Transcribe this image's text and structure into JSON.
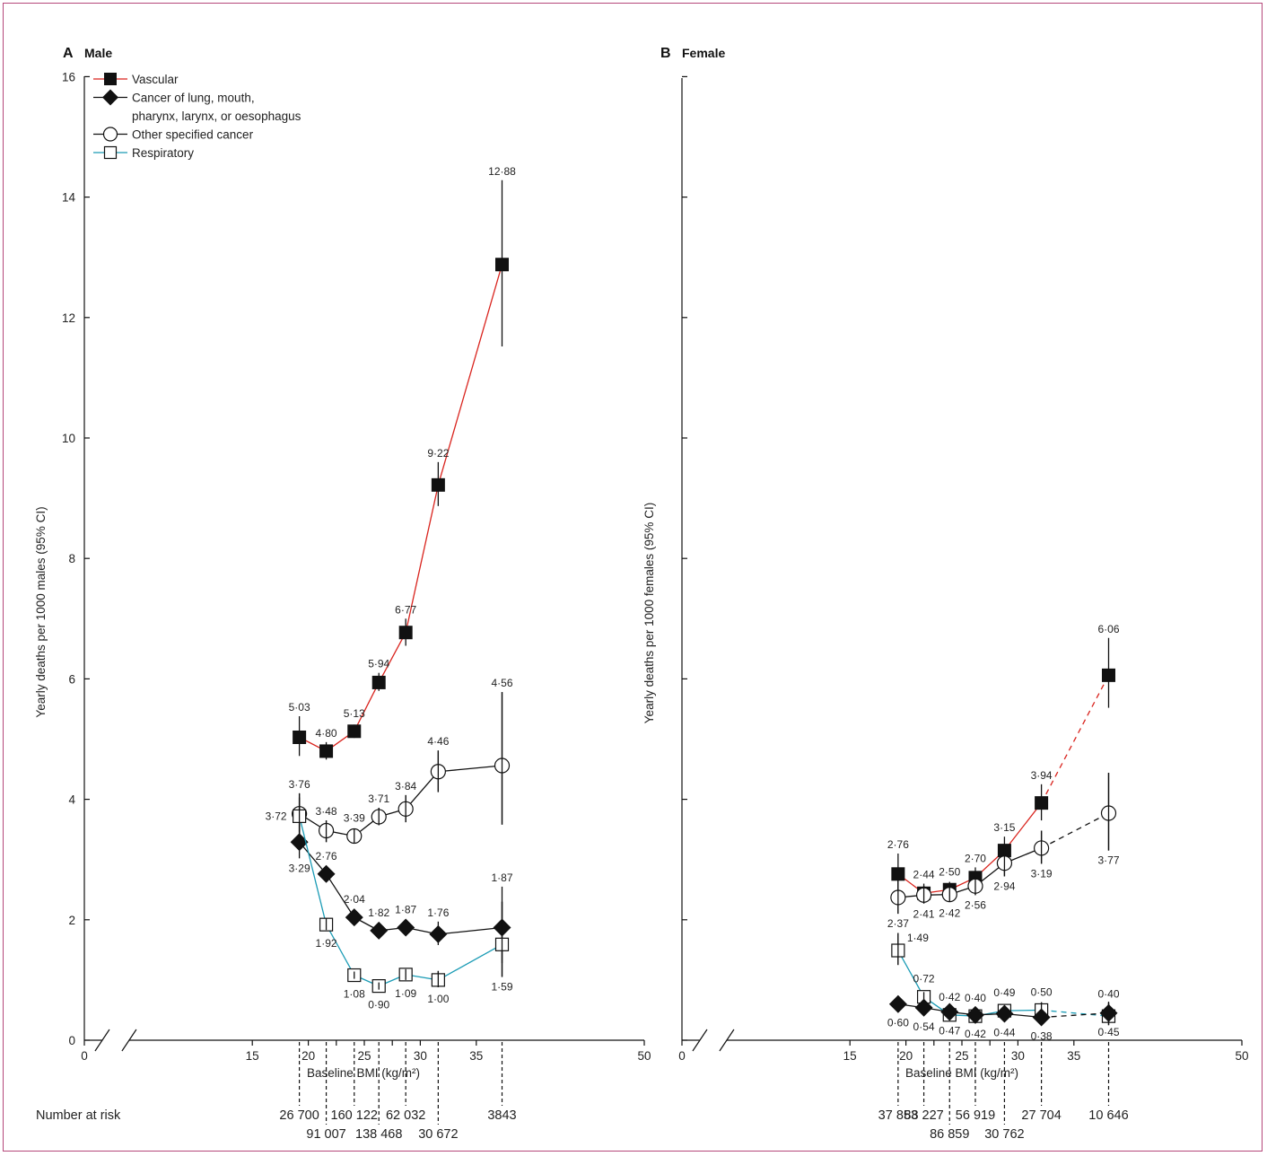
{
  "colors": {
    "vascular": "#d9231d",
    "respiratory": "#1a9bb5",
    "black": "#111111"
  },
  "chart_data": [
    {
      "type": "line",
      "panel": "A",
      "title": "Male",
      "xlabel": "Baseline BMI (kg/m²)",
      "ylabel": "Yearly deaths per 1000 males (95% CI)",
      "xlim": [
        0,
        50
      ],
      "ylim": [
        0,
        16
      ],
      "x_ticks": [
        0,
        15,
        20,
        25,
        30,
        35,
        50
      ],
      "y_ticks": [
        0,
        2,
        4,
        6,
        8,
        10,
        12,
        14,
        16
      ],
      "axis_break": true,
      "legend": {
        "placement": "top-left",
        "entries": [
          {
            "name": "Vascular",
            "marker": "filled-square",
            "color": "vascular",
            "lines": [
              "Vascular"
            ]
          },
          {
            "name": "Cancer of lung, mouth, pharynx, larynx, or oesophagus",
            "marker": "filled-diamond",
            "color": "black",
            "lines": [
              "Cancer of lung, mouth,",
              "pharynx, larynx, or oesophagus"
            ]
          },
          {
            "name": "Other specified cancer",
            "marker": "open-circle",
            "color": "black",
            "lines": [
              "Other specified cancer"
            ]
          },
          {
            "name": "Respiratory",
            "marker": "open-square",
            "color": "respiratory",
            "lines": [
              "Respiratory"
            ]
          }
        ]
      },
      "x": [
        19.2,
        21.6,
        24.1,
        26.3,
        28.7,
        31.6,
        37.3
      ],
      "series": [
        {
          "name": "Vascular",
          "marker": "filled-square",
          "color": "vascular",
          "values": [
            5.03,
            4.8,
            5.13,
            5.94,
            6.77,
            9.22,
            12.88
          ],
          "labels": [
            "5·03",
            "4·80",
            "5·13",
            "5·94",
            "6·77",
            "9·22",
            "12·88"
          ],
          "ci_low": [
            4.72,
            4.66,
            5.02,
            5.8,
            6.55,
            8.87,
            11.52
          ],
          "ci_high": [
            5.38,
            4.95,
            5.24,
            6.1,
            7.0,
            9.6,
            14.28
          ],
          "label_side": [
            "above",
            "above",
            "above",
            "above",
            "above",
            "above",
            "above"
          ]
        },
        {
          "name": "Other specified cancer",
          "marker": "open-circle",
          "color": "black",
          "values": [
            3.76,
            3.48,
            3.39,
            3.71,
            3.84,
            4.46,
            4.56
          ],
          "labels": [
            "3·76",
            "3·48",
            "3·39",
            "3·71",
            "3·84",
            "4·46",
            "4·56"
          ],
          "ci_low": [
            3.45,
            3.29,
            3.28,
            3.57,
            3.62,
            4.12,
            3.58
          ],
          "ci_high": [
            4.1,
            3.65,
            3.51,
            3.86,
            4.07,
            4.81,
            5.78
          ],
          "label_side": [
            "above",
            "above",
            "above",
            "above",
            "above",
            "above",
            "above"
          ]
        },
        {
          "name": "Cancer of lung, mouth, pharynx, larynx, or oesophagus",
          "marker": "filled-diamond",
          "color": "black",
          "values": [
            3.29,
            2.76,
            2.04,
            1.82,
            1.87,
            1.76,
            1.87
          ],
          "labels": [
            "3·29",
            "2·76",
            "2·04",
            "1·82",
            "1·87",
            "1·76",
            "1·87"
          ],
          "ci_low": [
            3.02,
            2.64,
            1.95,
            1.72,
            1.74,
            1.58,
            1.28
          ],
          "ci_high": [
            3.58,
            2.89,
            2.12,
            1.93,
            2.0,
            1.97,
            2.55
          ],
          "label_side": [
            "below",
            "above",
            "above",
            "above",
            "above",
            "above",
            "above"
          ]
        },
        {
          "name": "Respiratory",
          "marker": "open-square",
          "color": "respiratory",
          "values": [
            3.72,
            1.92,
            1.08,
            0.9,
            1.09,
            1.0,
            1.59
          ],
          "labels": [
            "3·72",
            "1·92",
            "1·08",
            "0·90",
            "1·09",
            "1·00",
            "1·59"
          ],
          "ci_low": [
            3.42,
            1.83,
            1.02,
            0.84,
            1.0,
            0.88,
            1.05
          ],
          "ci_high": [
            4.03,
            2.02,
            1.14,
            0.96,
            1.18,
            1.15,
            2.3
          ],
          "label_side": [
            "left",
            "below",
            "below",
            "below",
            "below",
            "below",
            "below"
          ]
        }
      ],
      "solid_segments": 6,
      "risk_label": "Number at risk",
      "number_at_risk": [
        {
          "x": 19.2,
          "value": "26 700",
          "row": 1
        },
        {
          "x": 21.6,
          "value": "91 007",
          "row": 2
        },
        {
          "x": 24.1,
          "value": "160 122",
          "row": 1
        },
        {
          "x": 26.3,
          "value": "138 468",
          "row": 2
        },
        {
          "x": 28.7,
          "value": "62 032",
          "row": 1
        },
        {
          "x": 31.6,
          "value": "30 672",
          "row": 2
        },
        {
          "x": 37.3,
          "value": "3843",
          "row": 1
        }
      ]
    },
    {
      "type": "line",
      "panel": "B",
      "title": "Female",
      "xlabel": "Baseline BMI (kg/m²)",
      "ylabel": "Yearly deaths per 1000 females (95% CI)",
      "xlim": [
        0,
        50
      ],
      "ylim": [
        0,
        16
      ],
      "x_ticks": [
        0,
        15,
        20,
        25,
        30,
        35,
        50
      ],
      "y_ticks": [
        0,
        2,
        4,
        6,
        8,
        10,
        12,
        14,
        16
      ],
      "axis_break": true,
      "x": [
        19.3,
        21.6,
        23.9,
        26.2,
        28.8,
        32.1,
        38.1
      ],
      "series": [
        {
          "name": "Vascular",
          "marker": "filled-square",
          "color": "vascular",
          "values": [
            2.76,
            2.44,
            2.5,
            2.7,
            3.15,
            3.94,
            6.06
          ],
          "labels": [
            "2·76",
            "2·44",
            "2·50",
            "2·70",
            "3·15",
            "3·94",
            "6·06"
          ],
          "ci_low": [
            2.45,
            2.29,
            2.38,
            2.54,
            2.93,
            3.65,
            5.52
          ],
          "ci_high": [
            3.1,
            2.6,
            2.63,
            2.87,
            3.38,
            4.25,
            6.68
          ],
          "label_side": [
            "above",
            "above",
            "above",
            "above",
            "above",
            "above",
            "above"
          ]
        },
        {
          "name": "Other specified cancer",
          "marker": "open-circle",
          "color": "black",
          "values": [
            2.37,
            2.41,
            2.42,
            2.56,
            2.94,
            3.19,
            3.77
          ],
          "labels": [
            "2·37",
            "2·41",
            "2·42",
            "2·56",
            "2·94",
            "3·19",
            "3·77"
          ],
          "ci_low": [
            2.1,
            2.27,
            2.3,
            2.41,
            2.72,
            2.93,
            3.15
          ],
          "ci_high": [
            2.66,
            2.56,
            2.54,
            2.72,
            3.18,
            3.48,
            4.44
          ],
          "label_side": [
            "below",
            "below",
            "below",
            "below",
            "below",
            "below",
            "below"
          ]
        },
        {
          "name": "Respiratory",
          "marker": "open-square",
          "color": "respiratory",
          "values": [
            1.49,
            0.72,
            0.42,
            0.4,
            0.49,
            0.5,
            0.4
          ],
          "labels": [
            "1·49",
            "0·72",
            "0·42",
            "0·40",
            "0·49",
            "0·50",
            "0·40"
          ],
          "ci_low": [
            1.25,
            0.65,
            0.37,
            0.34,
            0.41,
            0.39,
            0.25
          ],
          "ci_high": [
            1.78,
            0.8,
            0.48,
            0.46,
            0.58,
            0.63,
            0.62
          ],
          "label_side": [
            "right",
            "above",
            "above",
            "above",
            "above",
            "above",
            "above"
          ]
        },
        {
          "name": "Cancer of lung, mouth, pharynx, larynx, or oesophagus",
          "marker": "filled-diamond",
          "color": "black",
          "values": [
            0.6,
            0.54,
            0.47,
            0.42,
            0.44,
            0.38,
            0.45
          ],
          "labels": [
            "0·60",
            "0·54",
            "0·47",
            "0·42",
            "0·44",
            "0·38",
            "0·45"
          ],
          "ci_low": [
            0.48,
            0.48,
            0.42,
            0.37,
            0.38,
            0.3,
            0.3
          ],
          "ci_high": [
            0.74,
            0.6,
            0.53,
            0.48,
            0.51,
            0.47,
            0.64
          ],
          "label_side": [
            "below",
            "below",
            "below",
            "below",
            "below",
            "below",
            "below"
          ]
        }
      ],
      "solid_segments": 5,
      "number_at_risk": [
        {
          "x": 19.3,
          "value": "37 853",
          "row": 1
        },
        {
          "x": 21.6,
          "value": "88 227",
          "row": 1
        },
        {
          "x": 23.9,
          "value": "86 859",
          "row": 2
        },
        {
          "x": 26.2,
          "value": "56 919",
          "row": 1
        },
        {
          "x": 28.8,
          "value": "30 762",
          "row": 2
        },
        {
          "x": 32.1,
          "value": "27 704",
          "row": 1
        },
        {
          "x": 38.1,
          "value": "10 646",
          "row": 1
        }
      ]
    }
  ]
}
